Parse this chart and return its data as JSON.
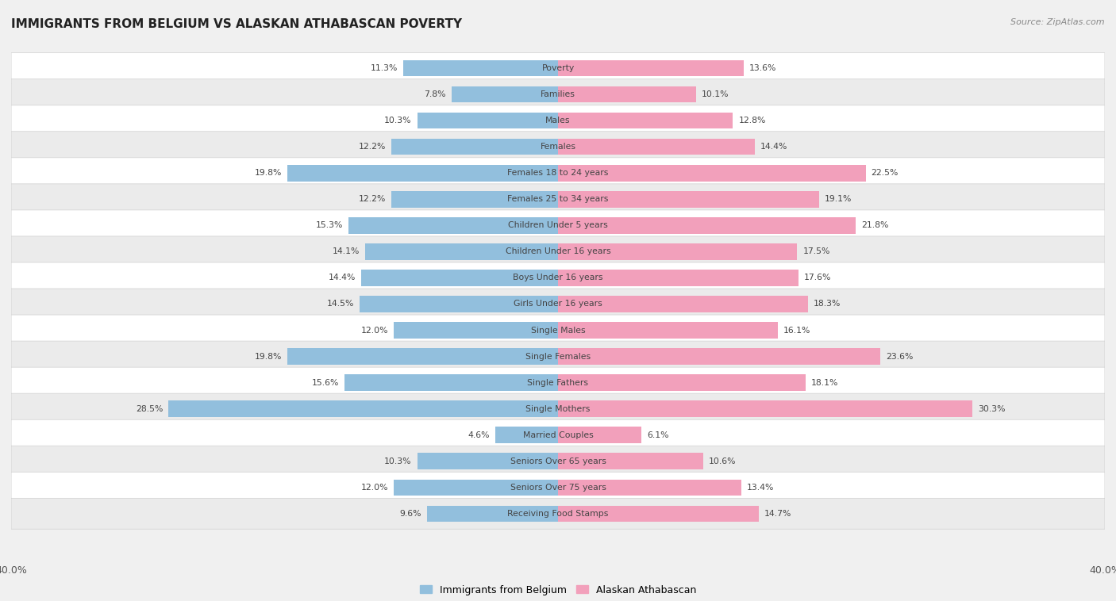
{
  "title": "IMMIGRANTS FROM BELGIUM VS ALASKAN ATHABASCAN POVERTY",
  "source": "Source: ZipAtlas.com",
  "categories": [
    "Poverty",
    "Families",
    "Males",
    "Females",
    "Females 18 to 24 years",
    "Females 25 to 34 years",
    "Children Under 5 years",
    "Children Under 16 years",
    "Boys Under 16 years",
    "Girls Under 16 years",
    "Single Males",
    "Single Females",
    "Single Fathers",
    "Single Mothers",
    "Married Couples",
    "Seniors Over 65 years",
    "Seniors Over 75 years",
    "Receiving Food Stamps"
  ],
  "belgium_values": [
    11.3,
    7.8,
    10.3,
    12.2,
    19.8,
    12.2,
    15.3,
    14.1,
    14.4,
    14.5,
    12.0,
    19.8,
    15.6,
    28.5,
    4.6,
    10.3,
    12.0,
    9.6
  ],
  "athabascan_values": [
    13.6,
    10.1,
    12.8,
    14.4,
    22.5,
    19.1,
    21.8,
    17.5,
    17.6,
    18.3,
    16.1,
    23.6,
    18.1,
    30.3,
    6.1,
    10.6,
    13.4,
    14.7
  ],
  "belgium_color": "#92bfdd",
  "athabascan_color": "#f2a0bb",
  "row_color_even": "#f5f5f5",
  "row_color_odd": "#e8e8e8",
  "background_color": "#f0f0f0",
  "xlim": 40.0,
  "legend_labels": [
    "Immigrants from Belgium",
    "Alaskan Athabascan"
  ]
}
